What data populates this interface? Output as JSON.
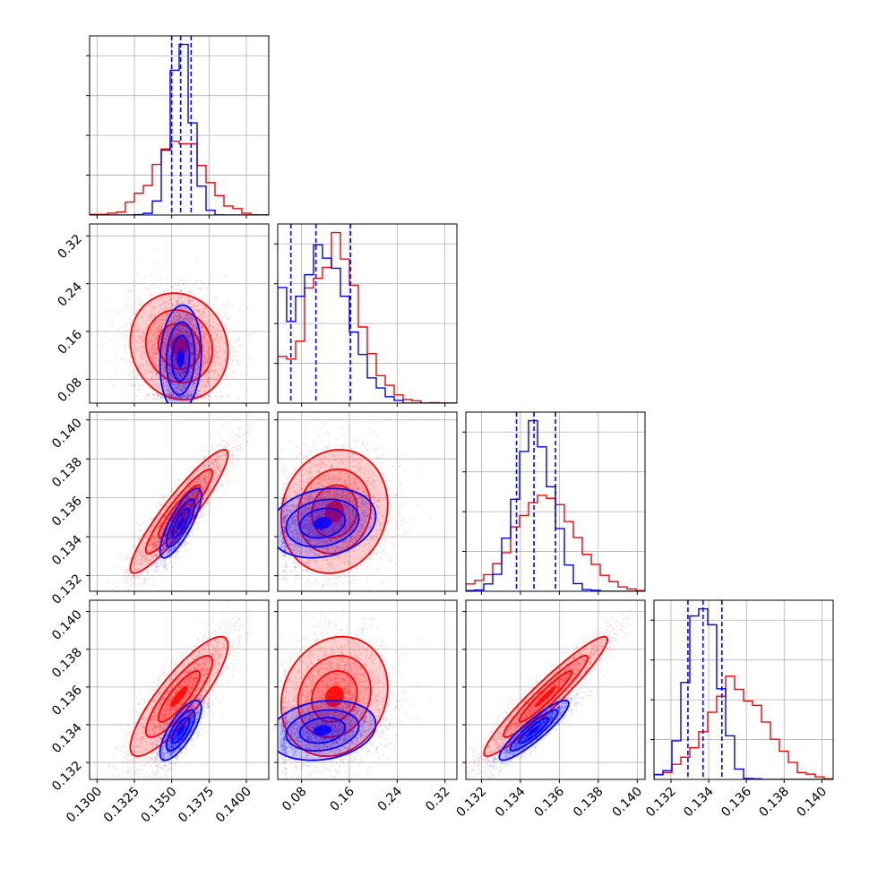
{
  "chart_data": {
    "type": "scatter",
    "title": "",
    "colors": {
      "series_a": "#ff0000",
      "series_b": "#0000ff",
      "grid": "#b0b0b0"
    },
    "grid": true,
    "params": [
      {
        "xlim": [
          0.1295,
          0.1415
        ],
        "ticks": [
          0.13,
          0.1325,
          0.135,
          0.1375,
          0.14
        ],
        "ticklabels": [
          "0.1300",
          "0.1325",
          "0.1350",
          "0.1375",
          "0.1400"
        ]
      },
      {
        "xlim": [
          0.04,
          0.34
        ],
        "ticks": [
          0.08,
          0.16,
          0.24,
          0.32
        ],
        "ticklabels": [
          "0.08",
          "0.16",
          "0.24",
          "0.32"
        ]
      },
      {
        "xlim": [
          0.1312,
          0.1404
        ],
        "ticks": [
          0.132,
          0.134,
          0.136,
          0.138,
          0.14
        ],
        "ticklabels": [
          "0.132",
          "0.134",
          "0.136",
          "0.138",
          "0.140"
        ]
      },
      {
        "xlim": [
          0.1311,
          0.1406
        ],
        "ticks": [
          0.132,
          0.134,
          0.136,
          0.138,
          0.14
        ],
        "ticklabels": [
          "0.132",
          "0.134",
          "0.136",
          "0.138",
          "0.140"
        ]
      }
    ],
    "series": [
      {
        "color": "#ff0000",
        "mean": [
          0.1355,
          0.135,
          0.1353,
          0.1355
        ],
        "std": [
          0.00165,
          0.045,
          0.0016,
          0.0016
        ],
        "corr": [
          [
            1,
            -0.1,
            0.92,
            0.85
          ],
          [
            -0.1,
            1,
            0.1,
            0.15
          ],
          [
            0.92,
            0.1,
            1,
            0.95
          ],
          [
            0.85,
            0.15,
            0.95,
            1
          ]
        ],
        "quantiles": [
          [],
          [],
          [],
          []
        ]
      },
      {
        "color": "#0000ff",
        "mean": [
          0.1356,
          0.115,
          0.1347,
          0.1337
        ],
        "std": [
          0.0007,
          0.045,
          0.0009,
          0.0008
        ],
        "corr": [
          [
            1,
            0.1,
            0.8,
            0.75
          ],
          [
            0.1,
            1,
            0.2,
            0.2
          ],
          [
            0.8,
            0.2,
            1,
            0.9
          ],
          [
            0.75,
            0.2,
            0.9,
            1
          ]
        ],
        "quantiles": [
          [
            0.135,
            0.1356,
            0.1363
          ],
          [
            0.062,
            0.104,
            0.162
          ],
          [
            0.1338,
            0.1347,
            0.1358
          ],
          [
            0.1329,
            0.1337,
            0.1347
          ]
        ]
      }
    ]
  }
}
